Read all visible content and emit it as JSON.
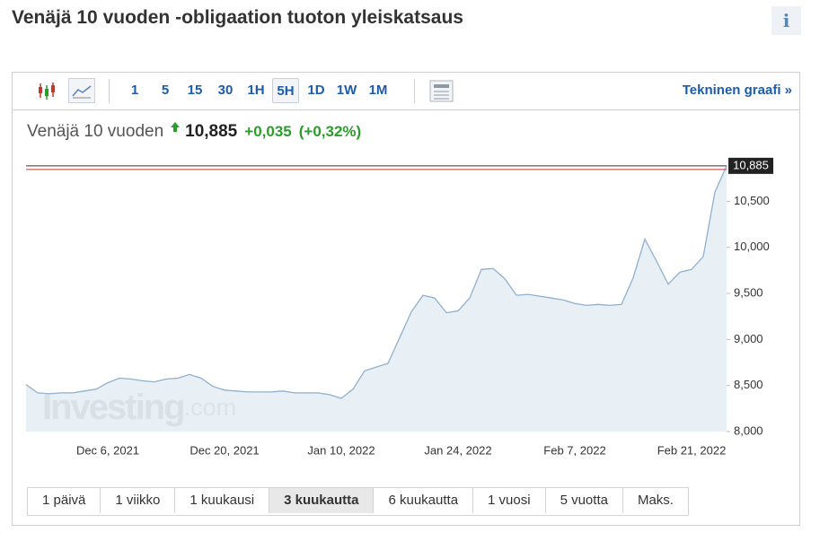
{
  "header": {
    "title": "Venäjä 10 vuoden -obligaation tuoton yleiskatsaus",
    "info": "i"
  },
  "toolbar": {
    "intervals": [
      "1",
      "5",
      "15",
      "30",
      "1H",
      "5H",
      "1D",
      "1W",
      "1M"
    ],
    "active_interval_index": 5,
    "technical_link": "Tekninen graafi »"
  },
  "quote": {
    "name": "Venäjä 10 vuoden",
    "price": "10,885",
    "change": "+0,035",
    "change_pct": "(+0,32%)"
  },
  "chart_data": {
    "type": "area",
    "x": [
      "Nov 25, 2021",
      "Nov 26, 2021",
      "Nov 29, 2021",
      "Nov 30, 2021",
      "Dec 1, 2021",
      "Dec 2, 2021",
      "Dec 3, 2021",
      "Dec 6, 2021",
      "Dec 7, 2021",
      "Dec 8, 2021",
      "Dec 9, 2021",
      "Dec 10, 2021",
      "Dec 13, 2021",
      "Dec 14, 2021",
      "Dec 15, 2021",
      "Dec 16, 2021",
      "Dec 17, 2021",
      "Dec 20, 2021",
      "Dec 21, 2021",
      "Dec 22, 2021",
      "Dec 23, 2021",
      "Dec 24, 2021",
      "Dec 27, 2021",
      "Dec 28, 2021",
      "Dec 29, 2021",
      "Dec 30, 2021",
      "Dec 31, 2021",
      "Jan 10, 2022",
      "Jan 11, 2022",
      "Jan 12, 2022",
      "Jan 13, 2022",
      "Jan 14, 2022",
      "Jan 17, 2022",
      "Jan 18, 2022",
      "Jan 19, 2022",
      "Jan 20, 2022",
      "Jan 21, 2022",
      "Jan 24, 2022",
      "Jan 25, 2022",
      "Jan 26, 2022",
      "Jan 27, 2022",
      "Jan 28, 2022",
      "Jan 31, 2022",
      "Feb 1, 2022",
      "Feb 2, 2022",
      "Feb 3, 2022",
      "Feb 4, 2022",
      "Feb 7, 2022",
      "Feb 8, 2022",
      "Feb 9, 2022",
      "Feb 10, 2022",
      "Feb 11, 2022",
      "Feb 14, 2022",
      "Feb 15, 2022",
      "Feb 16, 2022",
      "Feb 17, 2022",
      "Feb 18, 2022",
      "Feb 21, 2022",
      "Feb 22, 2022",
      "Feb 24, 2022",
      "Feb 25, 2022"
    ],
    "values": [
      8.51,
      8.42,
      8.41,
      8.42,
      8.42,
      8.44,
      8.46,
      8.53,
      8.58,
      8.57,
      8.55,
      8.54,
      8.57,
      8.58,
      8.62,
      8.58,
      8.49,
      8.45,
      8.44,
      8.43,
      8.43,
      8.43,
      8.44,
      8.42,
      8.42,
      8.42,
      8.4,
      8.36,
      8.46,
      8.66,
      8.7,
      8.74,
      9.02,
      9.3,
      9.48,
      9.45,
      9.29,
      9.31,
      9.45,
      9.76,
      9.77,
      9.66,
      9.48,
      9.49,
      9.47,
      9.45,
      9.43,
      9.39,
      9.37,
      9.38,
      9.37,
      9.38,
      9.67,
      10.09,
      9.85,
      9.6,
      9.73,
      9.76,
      9.9,
      10.6,
      10.885
    ],
    "color": "#8fb0cf",
    "fill": "#e4edf5",
    "ylim": [
      8,
      11.02
    ],
    "yticks": [
      {
        "value": 8,
        "label": "8,000"
      },
      {
        "value": 8.5,
        "label": "8,500"
      },
      {
        "value": 9,
        "label": "9,000"
      },
      {
        "value": 9.5,
        "label": "9,500"
      },
      {
        "value": 10,
        "label": "10,000"
      },
      {
        "value": 10.5,
        "label": "10,500"
      }
    ],
    "xticks": [
      "Dec 6, 2021",
      "Dec 20, 2021",
      "Jan 10, 2022",
      "Jan 24, 2022",
      "Feb 7, 2022",
      "Feb 21, 2022"
    ],
    "last_value": {
      "value": 10.885,
      "label": "10,885"
    },
    "watermark": {
      "brand": "Investing",
      "suffix": ".com"
    }
  },
  "ranges": {
    "buttons": [
      "1 päivä",
      "1 viikko",
      "1 kuukausi",
      "3 kuukautta",
      "6 kuukautta",
      "1 vuosi",
      "5 vuotta",
      "Maks."
    ],
    "active_index": 3
  }
}
